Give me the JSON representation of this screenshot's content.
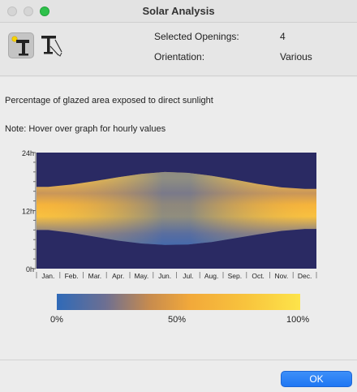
{
  "window": {
    "title": "Solar Analysis"
  },
  "header": {
    "tools": [
      {
        "icon": "sun-tree-icon",
        "selected": true
      },
      {
        "icon": "shadow-projection-icon",
        "selected": false
      }
    ],
    "selected_openings_label": "Selected Openings:",
    "selected_openings_value": "4",
    "orientation_label": "Orientation:",
    "orientation_value": "Various"
  },
  "main": {
    "description": "Percentage of glazed area exposed to direct sunlight",
    "note": "Note: Hover over graph for hourly values"
  },
  "chart_data": {
    "type": "heatmap",
    "y_ticks": [
      "24h",
      "12h",
      "0h"
    ],
    "months": [
      "Jan.",
      "Feb.",
      "Mar.",
      "Apr.",
      "May.",
      "Jun.",
      "Jul.",
      "Aug.",
      "Sep.",
      "Oct.",
      "Nov.",
      "Dec."
    ],
    "background_color": "#2a2a63",
    "color_scale": [
      "#2f6ab8",
      "#f2a93a",
      "#fde44a"
    ],
    "day_profile": {
      "sunrise_hour": [
        8.0,
        7.4,
        6.6,
        5.8,
        5.2,
        4.9,
        5.0,
        5.5,
        6.3,
        7.1,
        7.8,
        8.2
      ],
      "sunset_hour": [
        16.9,
        17.4,
        18.1,
        18.9,
        19.6,
        20.0,
        19.8,
        19.2,
        18.4,
        17.5,
        16.8,
        16.5
      ]
    }
  },
  "legend": {
    "ticks": [
      "0%",
      "50%",
      "100%"
    ]
  },
  "footer": {
    "ok_label": "OK",
    "ok_color": "#1f77f3"
  }
}
